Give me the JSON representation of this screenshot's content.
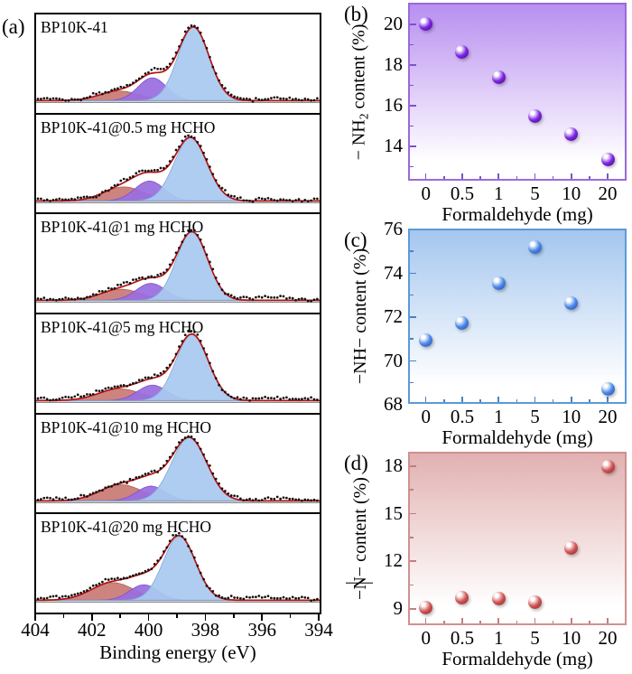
{
  "panels": {
    "a": {
      "letter": "(a)",
      "xlabel": "Binding energy (eV)"
    }
  },
  "chart_data": [
    {
      "panel": "a",
      "type": "area",
      "xlabel": "Binding energy (eV)",
      "x_range": [
        404,
        394
      ],
      "x_ticks": [
        "404",
        "402",
        "400",
        "398",
        "396",
        "394"
      ],
      "x_minor_ticks": [
        403,
        401,
        399,
        397,
        395
      ],
      "colors": {
        "fill_blue": "#a9c9ef",
        "fill_purple": "#9a6ee0",
        "fill_red": "#c97b74",
        "stroke_blue": "#7fa8d8",
        "stroke_purple": "#7f50c8",
        "stroke_red": "#b05f58",
        "envelope": "#b51212",
        "dots": "#111111",
        "baseline": "#8a8a8a"
      },
      "samples": [
        {
          "label": "BP10K-41",
          "peaks": [
            {
              "name": "blue",
              "center": 398.45,
              "sigma": 0.55,
              "height": 1.0
            },
            {
              "name": "purple",
              "center": 399.9,
              "sigma": 0.5,
              "height": 0.31
            },
            {
              "name": "red",
              "center": 401.05,
              "sigma": 0.7,
              "height": 0.13
            }
          ]
        },
        {
          "label": "BP10K-41@0.5 mg HCHO",
          "peaks": [
            {
              "name": "blue",
              "center": 398.55,
              "sigma": 0.58,
              "height": 0.86
            },
            {
              "name": "purple",
              "center": 400.0,
              "sigma": 0.52,
              "height": 0.27
            },
            {
              "name": "red",
              "center": 400.9,
              "sigma": 0.7,
              "height": 0.19
            }
          ]
        },
        {
          "label": "BP10K-41@1 mg HCHO",
          "peaks": [
            {
              "name": "blue",
              "center": 398.5,
              "sigma": 0.55,
              "height": 0.93
            },
            {
              "name": "purple",
              "center": 399.95,
              "sigma": 0.52,
              "height": 0.23
            },
            {
              "name": "red",
              "center": 401.0,
              "sigma": 0.7,
              "height": 0.15
            }
          ]
        },
        {
          "label": "BP10K-41@5 mg HCHO",
          "peaks": [
            {
              "name": "blue",
              "center": 398.5,
              "sigma": 0.57,
              "height": 0.9
            },
            {
              "name": "purple",
              "center": 399.9,
              "sigma": 0.52,
              "height": 0.21
            },
            {
              "name": "red",
              "center": 401.05,
              "sigma": 0.75,
              "height": 0.16
            }
          ]
        },
        {
          "label": "BP10K-41@10 mg HCHO",
          "peaks": [
            {
              "name": "blue",
              "center": 398.6,
              "sigma": 0.62,
              "height": 0.86
            },
            {
              "name": "purple",
              "center": 399.95,
              "sigma": 0.5,
              "height": 0.2
            },
            {
              "name": "red",
              "center": 401.0,
              "sigma": 0.75,
              "height": 0.22
            }
          ]
        },
        {
          "label": "BP10K-41@20 mg HCHO",
          "peaks": [
            {
              "name": "blue",
              "center": 398.95,
              "sigma": 0.57,
              "height": 0.87
            },
            {
              "name": "purple",
              "center": 400.2,
              "sigma": 0.5,
              "height": 0.21
            },
            {
              "name": "red",
              "center": 401.3,
              "sigma": 0.75,
              "height": 0.24
            }
          ]
        }
      ]
    },
    {
      "panel": "b",
      "letter": "(b)",
      "type": "scatter",
      "xlabel": "Formaldehyde (mg)",
      "ylabel": "− NH2 content (%)",
      "ylabel_parts": [
        {
          "t": "− NH"
        },
        {
          "t": "2",
          "sub": true
        },
        {
          "t": " content (%)"
        }
      ],
      "categories": [
        "0",
        "0.5",
        "1",
        "5",
        "10",
        "20"
      ],
      "values": [
        20.0,
        18.6,
        17.35,
        15.45,
        14.55,
        13.3
      ],
      "y_ticks": [
        20,
        18,
        16,
        14
      ],
      "y_minor_ticks": [
        19,
        17,
        15,
        13
      ],
      "ylim": [
        12.5,
        21.0
      ],
      "colors": {
        "border": "#9a6ada",
        "bg_top": "#b88ff0",
        "tick": "#8050cf",
        "marker": "#7c24e0",
        "marker_dark": "#40088f"
      }
    },
    {
      "panel": "c",
      "letter": "(c)",
      "type": "scatter",
      "xlabel": "Formaldehyde (mg)",
      "ylabel": "−NH− content (%)",
      "ylabel_parts": [
        {
          "t": "−NH− content (%)"
        }
      ],
      "categories": [
        "0",
        "0.5",
        "1",
        "5",
        "10",
        "20"
      ],
      "values": [
        70.9,
        71.7,
        73.5,
        75.15,
        72.6,
        68.7
      ],
      "y_ticks": [
        76,
        74,
        72,
        70,
        68
      ],
      "y_minor_ticks": [
        75,
        73,
        71,
        69
      ],
      "ylim": [
        68,
        76
      ],
      "colors": {
        "border": "#5c9ad8",
        "bg_top": "#a4c6ef",
        "tick": "#4a82c4",
        "marker": "#4a86e8",
        "marker_dark": "#1d4fa3"
      }
    },
    {
      "panel": "d",
      "letter": "(d)",
      "type": "scatter",
      "xlabel": "Formaldehyde (mg)",
      "ylabel": "−N− content (%)",
      "ylabel_parts": [
        {
          "t": "−"
        },
        {
          "t": "N",
          "bond": true
        },
        {
          "t": "− content (%)"
        }
      ],
      "categories": [
        "0",
        "0.5",
        "1",
        "5",
        "10",
        "20"
      ],
      "values": [
        9.05,
        9.65,
        9.6,
        9.35,
        12.8,
        17.9
      ],
      "y_ticks": [
        18,
        15,
        12,
        9
      ],
      "y_minor_ticks": [
        16.5,
        13.5,
        10.5
      ],
      "ylim": [
        7.9,
        18.85
      ],
      "colors": {
        "border": "#d09090",
        "bg_top": "#e2b1b1",
        "tick": "#c07f7f",
        "marker": "#d05454",
        "marker_dark": "#8f2222"
      }
    }
  ]
}
